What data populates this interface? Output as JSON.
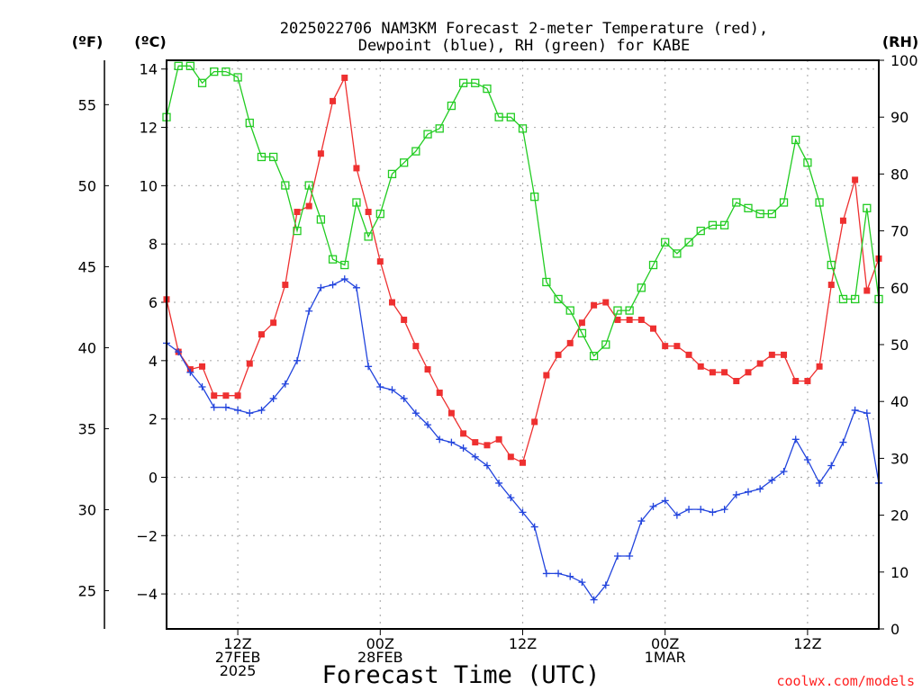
{
  "chart_data": {
    "type": "line",
    "title_lines": [
      "2025022706 NAM3KM Forecast 2-meter Temperature (red),",
      "Dewpoint (blue), RH (green) for KABE"
    ],
    "unit_labels": {
      "fahrenheit": "(ºF)",
      "celsius": "(ºC)",
      "rh": "(RH)"
    },
    "xlabel": "Forecast Time (UTC)",
    "credit": "coolwx.com/models",
    "x_range_hours": [
      0,
      60
    ],
    "y_celsius_range": [
      -5.2,
      14.3
    ],
    "y_rh_range": [
      0,
      100
    ],
    "celsius_ticks": [
      "14",
      "12",
      "10",
      "8",
      "6",
      "4",
      "2",
      "0",
      "−2",
      "−4"
    ],
    "fahrenheit_ticks": [
      "55",
      "50",
      "45",
      "40",
      "35",
      "30",
      "25"
    ],
    "rh_ticks": [
      "100",
      "90",
      "80",
      "70",
      "60",
      "50",
      "40",
      "30",
      "20",
      "10",
      "0"
    ],
    "x_ticks": [
      {
        "hour": 6,
        "lines": [
          "12Z",
          "27FEB",
          "2025"
        ]
      },
      {
        "hour": 18,
        "lines": [
          "00Z",
          "28FEB"
        ]
      },
      {
        "hour": 30,
        "lines": [
          "12Z"
        ]
      },
      {
        "hour": 42,
        "lines": [
          "00Z",
          "1MAR"
        ]
      },
      {
        "hour": 54,
        "lines": [
          "12Z"
        ]
      }
    ],
    "grid": true,
    "series": [
      {
        "name": "Temperature (°C)",
        "axis": "celsius",
        "color": "#ee3030",
        "marker": "filled-square",
        "values": [
          6.1,
          4.3,
          3.7,
          3.8,
          2.8,
          2.8,
          2.8,
          3.9,
          4.9,
          5.3,
          6.6,
          9.1,
          9.3,
          11.1,
          12.9,
          13.7,
          10.6,
          9.1,
          7.4,
          6.0,
          5.4,
          4.5,
          3.7,
          2.9,
          2.2,
          1.5,
          1.2,
          1.1,
          1.3,
          0.7,
          0.5,
          1.9,
          3.5,
          4.2,
          4.6,
          5.3,
          5.9,
          6.0,
          5.4,
          5.4,
          5.4,
          5.1,
          4.5,
          4.5,
          4.2,
          3.8,
          3.6,
          3.6,
          3.3,
          3.6,
          3.9,
          4.2,
          4.2,
          3.3,
          3.3,
          3.8,
          6.6,
          8.8,
          10.2,
          6.4,
          7.5
        ]
      },
      {
        "name": "Dewpoint (°C)",
        "axis": "celsius",
        "color": "#2244dd",
        "marker": "plus",
        "values": [
          4.6,
          4.3,
          3.6,
          3.1,
          2.4,
          2.4,
          2.3,
          2.2,
          2.3,
          2.7,
          3.2,
          4.0,
          5.7,
          6.5,
          6.6,
          6.8,
          6.5,
          3.8,
          3.1,
          3.0,
          2.7,
          2.2,
          1.8,
          1.3,
          1.2,
          1.0,
          0.7,
          0.4,
          -0.2,
          -0.7,
          -1.2,
          -1.7,
          -3.3,
          -3.3,
          -3.4,
          -3.6,
          -4.2,
          -3.7,
          -2.7,
          -2.7,
          -1.5,
          -1.0,
          -0.8,
          -1.3,
          -1.1,
          -1.1,
          -1.2,
          -1.1,
          -0.6,
          -0.5,
          -0.4,
          -0.1,
          0.2,
          1.3,
          0.6,
          -0.2,
          0.4,
          1.2,
          2.3,
          2.2,
          -0.2
        ]
      },
      {
        "name": "RH (%)",
        "axis": "rh",
        "color": "#22cc22",
        "marker": "open-square",
        "values": [
          90,
          99,
          99,
          96,
          98,
          98,
          97,
          89,
          83,
          83,
          78,
          70,
          78,
          72,
          65,
          64,
          75,
          69,
          73,
          80,
          82,
          84,
          87,
          88,
          92,
          96,
          96,
          95,
          90,
          90,
          88,
          76,
          61,
          58,
          56,
          52,
          48,
          50,
          56,
          56,
          60,
          64,
          68,
          66,
          68,
          70,
          71,
          71,
          75,
          74,
          73,
          73,
          75,
          86,
          82,
          75,
          64,
          58,
          58,
          74,
          58
        ]
      }
    ]
  }
}
